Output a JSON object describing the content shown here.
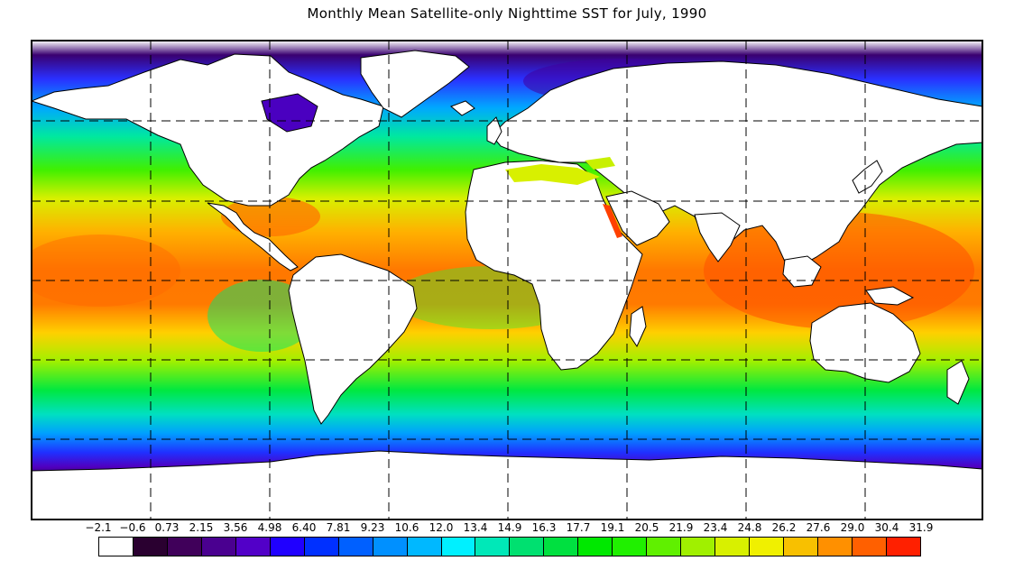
{
  "title": "Monthly Mean Satellite-only Nighttime SST for July, 1990",
  "legend": {
    "labels": [
      "−2.1",
      "−0.6",
      "0.73",
      "2.15",
      "3.56",
      "4.98",
      "6.40",
      "7.81",
      "9.23",
      "10.6",
      "12.0",
      "13.4",
      "14.9",
      "16.3",
      "17.7",
      "19.1",
      "20.5",
      "21.9",
      "23.4",
      "24.8",
      "26.2",
      "27.6",
      "29.0",
      "30.4",
      "31.9"
    ],
    "colors": [
      "#ffffff",
      "#2a0030",
      "#40005a",
      "#4a0090",
      "#5200c8",
      "#2000ff",
      "#0030ff",
      "#0060ff",
      "#0090ff",
      "#00b8ff",
      "#00f0ff",
      "#00e8b8",
      "#00e070",
      "#00e040",
      "#00e800",
      "#20f000",
      "#60f000",
      "#a0f000",
      "#d8f000",
      "#f0f000",
      "#f8c000",
      "#ff9000",
      "#ff6000",
      "#ff2000"
    ]
  },
  "colors": {
    "land": "#ffffff",
    "coast": "#000000",
    "grid": "#000000"
  }
}
